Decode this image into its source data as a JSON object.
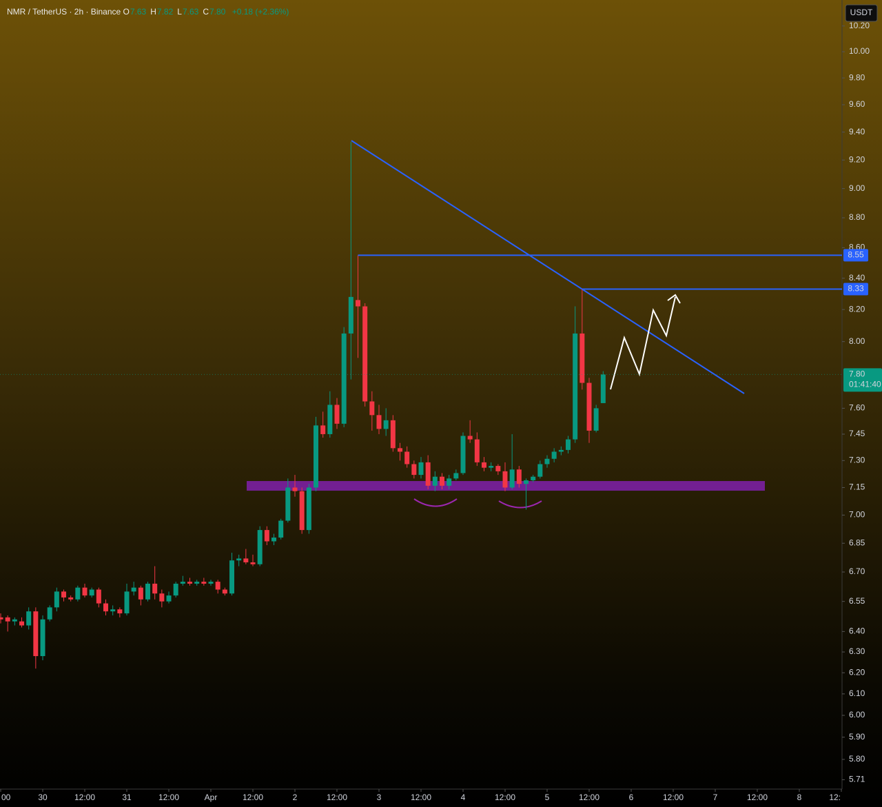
{
  "chart_data": {
    "type": "candlestick",
    "title": "NMR / TetherUS · 2h · Binance",
    "ohlc": [
      {
        "key": "O",
        "value": "7.63"
      },
      {
        "key": "H",
        "value": "7.82"
      },
      {
        "key": "L",
        "value": "7.63"
      },
      {
        "key": "C",
        "value": "7.80"
      }
    ],
    "change": "+0.18 (+2.36%)",
    "currency": "USDT",
    "log_scale": true,
    "grid": false,
    "up_color": "#089981",
    "down_color": "#f23645",
    "x": [
      -12,
      -10,
      -8,
      -6,
      -4,
      -2,
      0,
      2,
      4,
      6,
      8,
      10,
      12,
      14,
      16,
      18,
      20,
      22,
      24,
      26,
      28,
      30,
      32,
      34,
      36,
      38,
      40,
      42,
      44,
      46,
      48,
      50,
      52,
      54,
      56,
      58,
      60,
      62,
      64,
      66,
      68,
      70,
      72,
      74,
      76,
      78,
      80,
      82,
      84,
      86,
      88,
      90,
      92,
      94,
      96,
      98,
      100,
      102,
      104,
      106,
      108,
      110,
      112,
      114,
      116,
      118,
      120,
      122,
      124,
      126,
      128,
      130,
      132,
      134,
      136,
      138,
      140,
      142,
      144,
      146,
      148,
      150,
      152,
      154,
      156,
      158,
      160
    ],
    "open": [
      6.47,
      6.47,
      6.45,
      6.45,
      6.43,
      6.5,
      6.28,
      6.46,
      6.52,
      6.6,
      6.57,
      6.56,
      6.62,
      6.58,
      6.61,
      6.54,
      6.5,
      6.51,
      6.49,
      6.6,
      6.62,
      6.56,
      6.64,
      6.59,
      6.55,
      6.58,
      6.64,
      6.65,
      6.64,
      6.65,
      6.64,
      6.65,
      6.61,
      6.59,
      6.76,
      6.77,
      6.75,
      6.74,
      6.92,
      6.86,
      6.88,
      6.97,
      7.15,
      7.13,
      6.92,
      7.15,
      7.5,
      7.45,
      7.62,
      7.51,
      8.05,
      8.26,
      8.22,
      7.64,
      7.56,
      7.48,
      7.53,
      7.37,
      7.35,
      7.28,
      7.22,
      7.29,
      7.16,
      7.21,
      7.16,
      7.2,
      7.23,
      7.44,
      7.42,
      7.29,
      7.26,
      7.27,
      7.24,
      7.15,
      7.25,
      7.17,
      7.19,
      7.21,
      7.28,
      7.31,
      7.35,
      7.36,
      7.42,
      8.05,
      7.75,
      7.47,
      7.63
    ],
    "high": [
      6.49,
      6.48,
      6.47,
      6.47,
      6.52,
      6.52,
      6.48,
      6.53,
      6.62,
      6.61,
      6.58,
      6.63,
      6.64,
      6.62,
      6.62,
      6.56,
      6.53,
      6.52,
      6.64,
      6.65,
      6.63,
      6.65,
      6.73,
      6.61,
      6.6,
      6.65,
      6.68,
      6.67,
      6.66,
      6.67,
      6.66,
      6.66,
      6.62,
      6.8,
      6.79,
      6.82,
      6.79,
      6.94,
      6.94,
      6.9,
      6.98,
      7.2,
      7.22,
      7.15,
      7.17,
      7.55,
      7.58,
      7.7,
      7.66,
      8.09,
      9.33,
      8.55,
      8.24,
      7.7,
      7.62,
      7.6,
      7.56,
      7.4,
      7.38,
      7.3,
      7.32,
      7.33,
      7.24,
      7.23,
      7.22,
      7.25,
      7.46,
      7.53,
      7.46,
      7.32,
      7.29,
      7.28,
      7.29,
      7.45,
      7.27,
      7.2,
      7.22,
      7.3,
      7.33,
      7.37,
      7.38,
      7.44,
      8.22,
      8.33,
      7.78,
      7.62,
      7.82
    ],
    "low": [
      6.44,
      6.4,
      6.43,
      6.42,
      6.41,
      6.22,
      6.26,
      6.45,
      6.5,
      6.55,
      6.55,
      6.55,
      6.57,
      6.57,
      6.52,
      6.48,
      6.48,
      6.47,
      6.48,
      6.58,
      6.53,
      6.55,
      6.56,
      6.52,
      6.54,
      6.57,
      6.63,
      6.63,
      6.63,
      6.63,
      6.63,
      6.59,
      6.58,
      6.58,
      6.73,
      6.74,
      6.73,
      6.73,
      6.84,
      6.84,
      6.87,
      6.96,
      7.1,
      6.9,
      6.9,
      7.13,
      7.43,
      7.43,
      7.48,
      7.49,
      7.77,
      7.9,
      7.61,
      7.47,
      7.45,
      7.44,
      7.35,
      7.3,
      7.26,
      7.2,
      7.2,
      7.14,
      7.13,
      7.14,
      7.14,
      7.19,
      7.22,
      7.4,
      7.27,
      7.24,
      7.24,
      7.22,
      7.13,
      7.14,
      7.15,
      7.03,
      7.18,
      7.2,
      7.26,
      7.29,
      7.33,
      7.34,
      7.4,
      7.71,
      7.4,
      7.46,
      7.63
    ],
    "close": [
      6.46,
      6.45,
      6.46,
      6.43,
      6.5,
      6.28,
      6.46,
      6.52,
      6.6,
      6.57,
      6.56,
      6.62,
      6.58,
      6.61,
      6.54,
      6.5,
      6.51,
      6.49,
      6.6,
      6.62,
      6.56,
      6.64,
      6.59,
      6.55,
      6.58,
      6.64,
      6.65,
      6.64,
      6.65,
      6.64,
      6.65,
      6.61,
      6.59,
      6.76,
      6.77,
      6.75,
      6.74,
      6.92,
      6.86,
      6.88,
      6.97,
      7.15,
      7.13,
      6.92,
      7.15,
      7.5,
      7.45,
      7.62,
      7.51,
      8.05,
      8.28,
      8.22,
      7.64,
      7.56,
      7.48,
      7.53,
      7.37,
      7.35,
      7.28,
      7.22,
      7.29,
      7.16,
      7.21,
      7.16,
      7.2,
      7.23,
      7.44,
      7.42,
      7.29,
      7.26,
      7.27,
      7.24,
      7.15,
      7.25,
      7.17,
      7.19,
      7.21,
      7.28,
      7.31,
      7.35,
      7.36,
      7.42,
      8.05,
      7.75,
      7.47,
      7.6,
      7.8
    ],
    "xlim": [
      -12.2,
      228.2
    ],
    "ylim": [
      5.669,
      10.406
    ],
    "xticks": [
      {
        "value": -12,
        "label": "00"
      },
      {
        "value": 0,
        "label": "30"
      },
      {
        "value": 12,
        "label": "12:00"
      },
      {
        "value": 24,
        "label": "31"
      },
      {
        "value": 36,
        "label": "12:00"
      },
      {
        "value": 48,
        "label": "Apr"
      },
      {
        "value": 60,
        "label": "12:00"
      },
      {
        "value": 72,
        "label": "2"
      },
      {
        "value": 84,
        "label": "12:00"
      },
      {
        "value": 96,
        "label": "3"
      },
      {
        "value": 108,
        "label": "12:00"
      },
      {
        "value": 120,
        "label": "4"
      },
      {
        "value": 132,
        "label": "12:00"
      },
      {
        "value": 144,
        "label": "5"
      },
      {
        "value": 156,
        "label": "12:00"
      },
      {
        "value": 168,
        "label": "6"
      },
      {
        "value": 180,
        "label": "12:00"
      },
      {
        "value": 192,
        "label": "7"
      },
      {
        "value": 204,
        "label": "12:00"
      },
      {
        "value": 216,
        "label": "8"
      },
      {
        "value": 228,
        "label": "12:"
      }
    ],
    "yticks": [
      {
        "value": 10.2,
        "label": "10.20"
      },
      {
        "value": 10,
        "label": "10.00"
      },
      {
        "value": 9.8,
        "label": "9.80"
      },
      {
        "value": 9.6,
        "label": "9.60"
      },
      {
        "value": 9.4,
        "label": "9.40"
      },
      {
        "value": 9.2,
        "label": "9.20"
      },
      {
        "value": 9,
        "label": "9.00"
      },
      {
        "value": 8.8,
        "label": "8.80"
      },
      {
        "value": 8.6,
        "label": "8.60"
      },
      {
        "value": 8.4,
        "label": "8.40"
      },
      {
        "value": 8.2,
        "label": "8.20"
      },
      {
        "value": 8,
        "label": "8.00"
      },
      {
        "value": 7.6,
        "label": "7.60"
      },
      7.45,
      {
        "value": 7.3,
        "label": "7.30"
      },
      7.15,
      {
        "value": 7,
        "label": "7.00"
      },
      6.85,
      {
        "value": 6.7,
        "label": "6.70"
      },
      6.55,
      {
        "value": 6.4,
        "label": "6.40"
      },
      {
        "value": 6.3,
        "label": "6.30"
      },
      {
        "value": 6.2,
        "label": "6.20"
      },
      {
        "value": 6.1,
        "label": "6.10"
      },
      {
        "value": 6,
        "label": "6.00"
      },
      {
        "value": 5.9,
        "label": "5.90"
      },
      {
        "value": 5.8,
        "label": "5.80"
      },
      5.71
    ],
    "price_lines": [
      {
        "value": 8.55,
        "color": "#2962ff"
      },
      {
        "value": 8.33,
        "color": "#2962ff"
      }
    ],
    "last_price": {
      "value": {
        "value": 7.8,
        "label": "7.80"
      },
      "countdown": "01:41:40",
      "color": "#089981"
    }
  }
}
